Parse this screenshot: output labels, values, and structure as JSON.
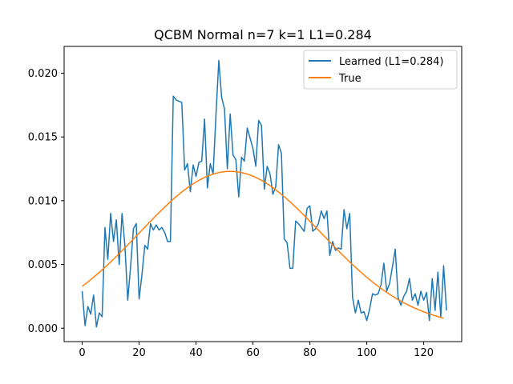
{
  "chart_data": {
    "type": "line",
    "title": "QCBM Normal n=7 k=1 L1=0.284",
    "xlabel": "",
    "ylabel": "",
    "xlim": [
      -6.35,
      133.35
    ],
    "ylim": [
      -0.00105,
      0.0221
    ],
    "grid": false,
    "legend_position": "top-right",
    "x_ticks": [
      0,
      20,
      40,
      60,
      80,
      100,
      120
    ],
    "x_tick_labels": [
      "0",
      "20",
      "40",
      "60",
      "80",
      "100",
      "120"
    ],
    "y_ticks": [
      0.0,
      0.005,
      0.01,
      0.015,
      0.02
    ],
    "y_tick_labels": [
      "0.000",
      "0.005",
      "0.010",
      "0.015",
      "0.020"
    ],
    "series": [
      {
        "name": "Learned (L1=0.284)",
        "color": "#1f77b4",
        "values": [
          0.0029,
          0.0002,
          0.0017,
          0.0011,
          0.0026,
          0.0001,
          0.0012,
          0.0009,
          0.0079,
          0.0054,
          0.009,
          0.0068,
          0.0085,
          0.005,
          0.009,
          0.0065,
          0.0022,
          0.0048,
          0.0078,
          0.0082,
          0.0023,
          0.0042,
          0.0065,
          0.0062,
          0.0082,
          0.0077,
          0.0081,
          0.0077,
          0.0079,
          0.0075,
          0.0068,
          0.0068,
          0.0182,
          0.0179,
          0.0178,
          0.0177,
          0.0124,
          0.0129,
          0.0107,
          0.0128,
          0.0119,
          0.013,
          0.0131,
          0.0164,
          0.011,
          0.0129,
          0.0121,
          0.0167,
          0.021,
          0.0181,
          0.0172,
          0.0125,
          0.0168,
          0.0136,
          0.0132,
          0.0103,
          0.0134,
          0.0131,
          0.0157,
          0.0149,
          0.0141,
          0.0127,
          0.0163,
          0.0159,
          0.0109,
          0.0127,
          0.0121,
          0.0105,
          0.0111,
          0.0144,
          0.0137,
          0.007,
          0.0067,
          0.0047,
          0.0047,
          0.0084,
          0.0082,
          0.0079,
          0.0076,
          0.0094,
          0.0096,
          0.0076,
          0.0078,
          0.0082,
          0.0092,
          0.0086,
          0.0092,
          0.0057,
          0.0068,
          0.0061,
          0.0063,
          0.0062,
          0.0093,
          0.0078,
          0.009,
          0.0024,
          0.0012,
          0.0022,
          0.0012,
          0.0013,
          0.0006,
          0.0015,
          0.0027,
          0.0026,
          0.0027,
          0.0034,
          0.0051,
          0.0029,
          0.0035,
          0.0048,
          0.0062,
          0.0024,
          0.0018,
          0.0025,
          0.0029,
          0.0039,
          0.0022,
          0.0027,
          0.0018,
          0.0029,
          0.0022,
          0.0028,
          0.0006,
          0.0039,
          0.0014,
          0.0044,
          0.0009,
          0.0049,
          0.0014
        ]
      },
      {
        "name": "True",
        "color": "#ff7f0e",
        "mean": 52,
        "sd": 32,
        "peak": 0.0123,
        "x_range": [
          0,
          127
        ]
      }
    ]
  },
  "legend": {
    "items": [
      "Learned (L1=0.284)",
      "True"
    ]
  }
}
